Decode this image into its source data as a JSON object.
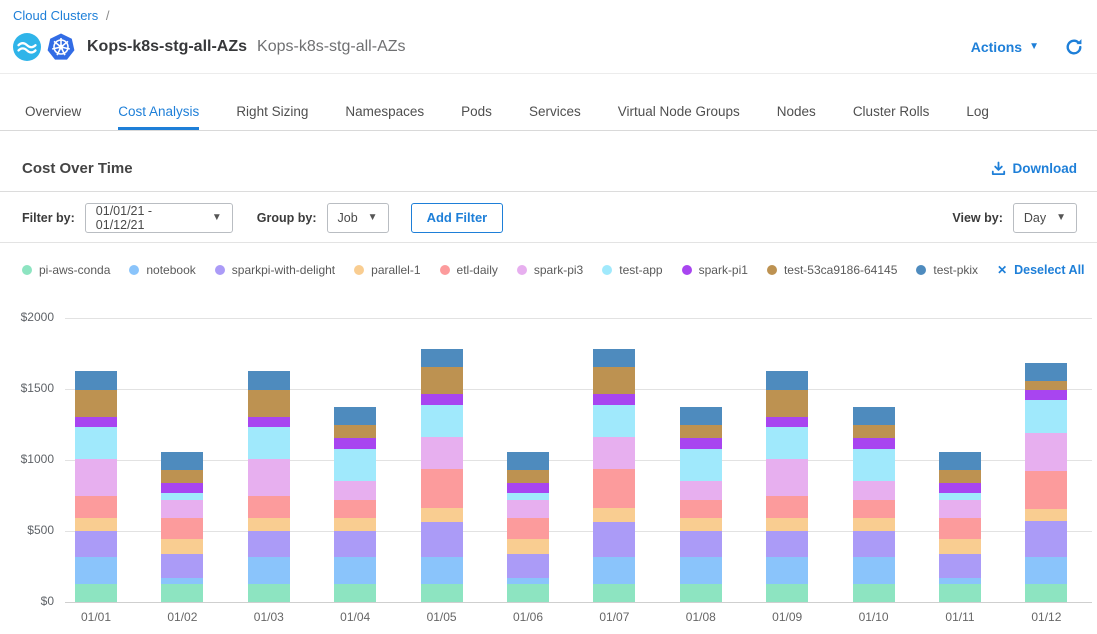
{
  "breadcrumb": {
    "link": "Cloud Clusters",
    "separator": "/"
  },
  "header": {
    "title": "Kops-k8s-stg-all-AZs",
    "subtitle": "Kops-k8s-stg-all-AZs",
    "actions_label": "Actions",
    "icons": {
      "ocean_logo": "ocean-waves",
      "kubernetes_logo": "kubernetes-helm-wheel",
      "refresh": "refresh-arrow",
      "actions_caret": "caret-down"
    }
  },
  "tabs": {
    "items": [
      "Overview",
      "Cost Analysis",
      "Right Sizing",
      "Namespaces",
      "Pods",
      "Services",
      "Virtual Node Groups",
      "Nodes",
      "Cluster Rolls",
      "Log"
    ],
    "active": "Cost Analysis"
  },
  "section": {
    "title": "Cost Over Time",
    "download_label": "Download",
    "download_icon": "download-arrow"
  },
  "filters": {
    "filter_by_label": "Filter by:",
    "date_range": "01/01/21 - 01/12/21",
    "group_by_label": "Group by:",
    "group_by_value": "Job",
    "add_filter_label": "Add Filter",
    "view_by_label": "View by:",
    "view_by_value": "Day"
  },
  "legend": {
    "deselect_label": "Deselect All",
    "deselect_icon": "x-mark"
  },
  "colors": {
    "accent_blue": "#1E7FD8",
    "grid": "#E2E2E2",
    "axis_text": "#5F6368"
  },
  "chart_data": {
    "type": "bar",
    "stacked": true,
    "title": "Cost Over Time",
    "xlabel": "",
    "ylabel": "",
    "ylim": [
      0,
      2000
    ],
    "grid": true,
    "legend_position": "top",
    "y_tick_values": [
      2000,
      1500,
      1000,
      500,
      0
    ],
    "y_tick_labels": [
      "$2000",
      "$1500",
      "$1000",
      "$500",
      "$0"
    ],
    "categories": [
      "01/01",
      "01/02",
      "01/03",
      "01/04",
      "01/05",
      "01/06",
      "01/07",
      "01/08",
      "01/09",
      "01/10",
      "01/11",
      "01/12"
    ],
    "series": [
      {
        "name": "pi-aws-conda",
        "color": "#8DE4C1",
        "values": [
          130,
          130,
          130,
          130,
          130,
          130,
          130,
          130,
          130,
          130,
          130,
          130
        ]
      },
      {
        "name": "notebook",
        "color": "#8AC4FB",
        "values": [
          190,
          40,
          190,
          190,
          190,
          40,
          190,
          190,
          190,
          190,
          40,
          190
        ]
      },
      {
        "name": "sparkpi-with-delight",
        "color": "#AB9BF7",
        "values": [
          180,
          165,
          180,
          180,
          245,
          165,
          245,
          180,
          180,
          180,
          165,
          250
        ]
      },
      {
        "name": "parallel-1",
        "color": "#F9CD91",
        "values": [
          95,
          110,
          95,
          90,
          100,
          110,
          100,
          90,
          95,
          90,
          110,
          85
        ]
      },
      {
        "name": "etl-daily",
        "color": "#FC9B9C",
        "values": [
          150,
          145,
          150,
          130,
          270,
          145,
          270,
          130,
          150,
          130,
          145,
          265
        ]
      },
      {
        "name": "spark-pi3",
        "color": "#E7AFEF",
        "values": [
          265,
          130,
          265,
          130,
          225,
          130,
          225,
          130,
          265,
          130,
          130,
          270
        ]
      },
      {
        "name": "test-app",
        "color": "#A0E9FC",
        "values": [
          220,
          50,
          220,
          225,
          225,
          50,
          225,
          225,
          220,
          225,
          50,
          235
        ]
      },
      {
        "name": "spark-pi1",
        "color": "#A845F0",
        "values": [
          70,
          70,
          70,
          80,
          80,
          70,
          80,
          80,
          70,
          80,
          70,
          70
        ]
      },
      {
        "name": "test-53ca9186-64145",
        "color": "#BD9251",
        "values": [
          195,
          90,
          195,
          90,
          190,
          90,
          190,
          90,
          195,
          90,
          90,
          60
        ]
      },
      {
        "name": "test-pkix",
        "color": "#4E8BBE",
        "values": [
          130,
          125,
          130,
          130,
          125,
          125,
          125,
          130,
          130,
          130,
          125,
          130
        ]
      }
    ]
  }
}
